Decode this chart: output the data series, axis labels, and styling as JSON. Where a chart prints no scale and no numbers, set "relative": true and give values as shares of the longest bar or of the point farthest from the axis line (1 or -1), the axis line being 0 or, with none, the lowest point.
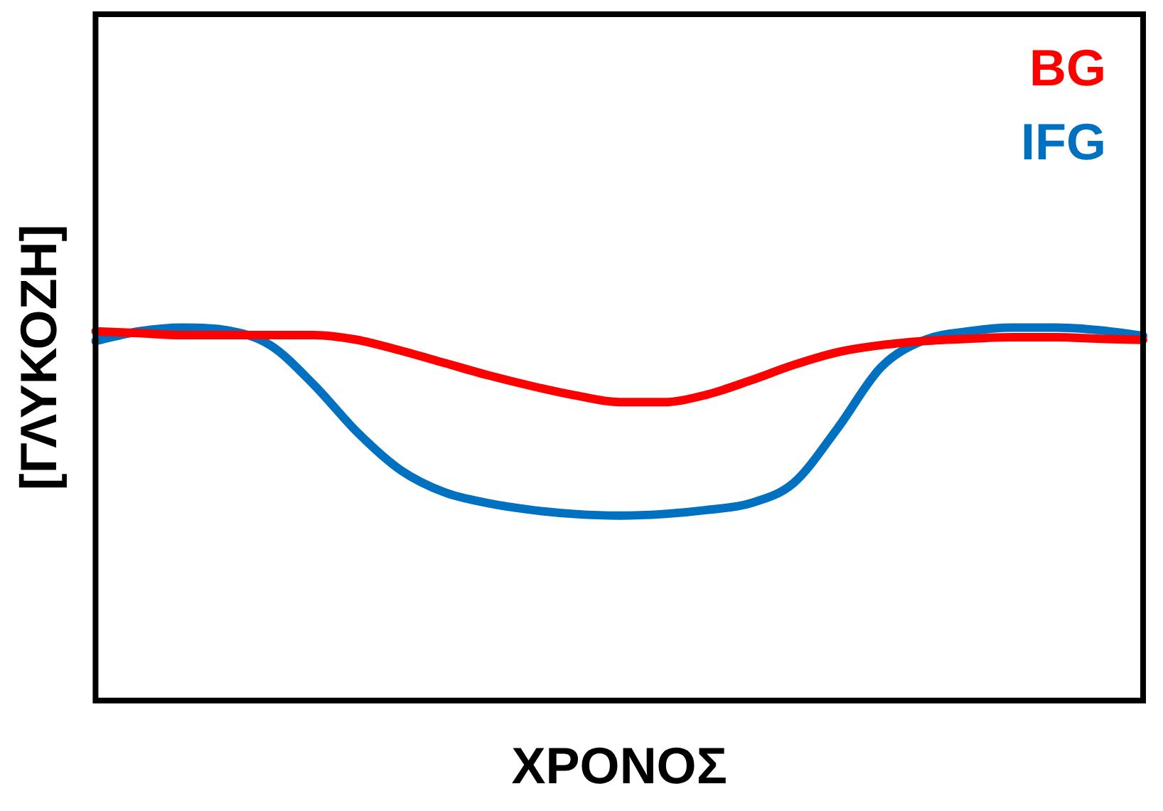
{
  "chart_data": {
    "type": "line",
    "relative": true,
    "xlabel": "ΧΡΟΝΟΣ",
    "ylabel": "[ΓΛΥΚΟΖΗ]",
    "legend": "top right",
    "grid": false,
    "marker": "none",
    "line_style": "solid",
    "categories": [
      null,
      null,
      null,
      null,
      null,
      null,
      null,
      null,
      null,
      null,
      null,
      null,
      null,
      null,
      null,
      null,
      null,
      null,
      null,
      null,
      null,
      null,
      null,
      null,
      null
    ],
    "series": [
      {
        "name": "BG",
        "color": "#ff0000",
        "values": [
          0.99,
          0.985,
          0.98,
          0.98,
          0.98,
          0.98,
          0.967,
          0.938,
          0.905,
          0.872,
          0.843,
          0.818,
          0.8,
          0.8,
          0.82,
          0.858,
          0.9,
          0.934,
          0.953,
          0.964,
          0.97,
          0.974,
          0.974,
          0.97,
          0.967
        ]
      },
      {
        "name": "IFG",
        "color": "#0070c0",
        "values": [
          0.964,
          0.99,
          1,
          0.993,
          0.953,
          0.847,
          0.719,
          0.617,
          0.558,
          0.529,
          0.511,
          0.5,
          0.496,
          0.5,
          0.511,
          0.529,
          0.584,
          0.73,
          0.894,
          0.967,
          0.99,
          1,
          1,
          0.993,
          0.978
        ]
      }
    ]
  }
}
